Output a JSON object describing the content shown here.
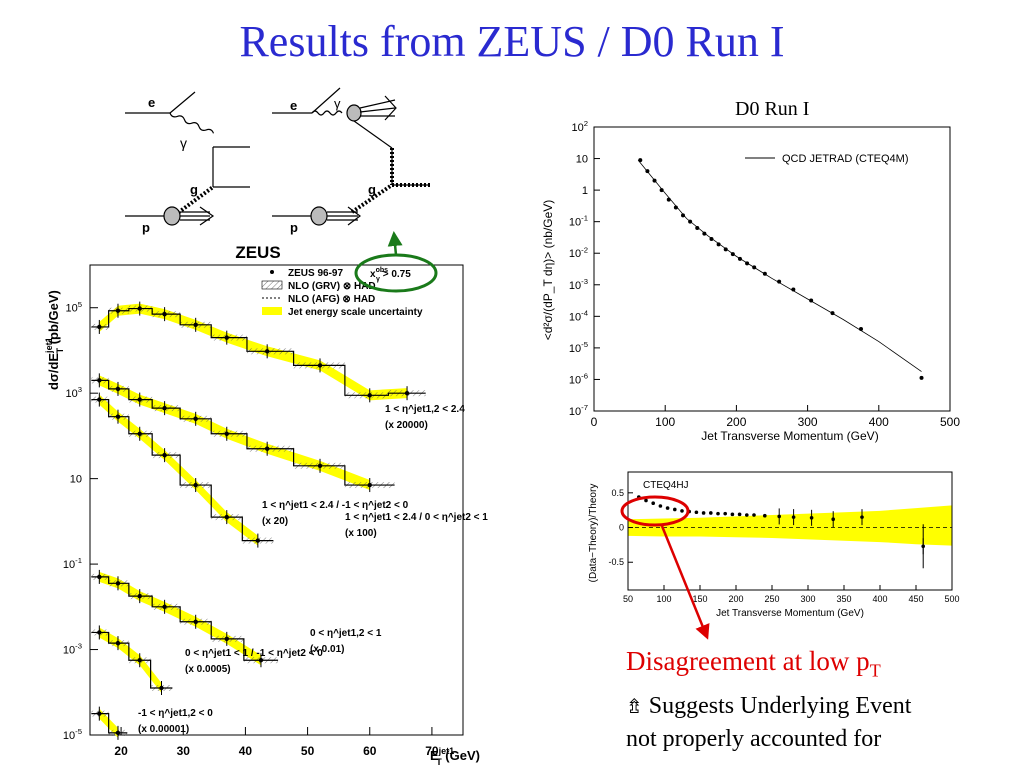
{
  "slide": {
    "title": "Results from ZEUS / D0 Run I",
    "conclusion": "Disagreement at low p",
    "conclusion_sub": "T",
    "bullet_icon": "hollow-arrow-icon",
    "bullet_arrow": "⇯",
    "bullet_line1": "Suggests Underlying Event",
    "bullet_line2": "not properly accounted for",
    "colors": {
      "title": "#2a2ad0",
      "conclusion": "#dd0000",
      "band": "#ffff00",
      "circle_green": "#1a7a1a",
      "circle_red": "#dd0000"
    }
  },
  "feynman": {
    "left": {
      "e": "e",
      "gamma": "γ",
      "g": "g",
      "p": "p"
    },
    "right": {
      "e": "e",
      "gamma": "γ",
      "g": "g",
      "p": "p"
    },
    "annotation": "x",
    "annotation_sup": "obs",
    "annotation_sub": "γ",
    "annotation_rest": " > 0.75"
  },
  "chart_data": [
    {
      "type": "line",
      "title": "ZEUS",
      "xlabel": "E",
      "xlabel_sub": "T",
      "xlabel_sup": "jet1",
      "xlabel_unit": " (GeV)",
      "ylabel": "dσ/dE",
      "ylabel_sub": "T",
      "ylabel_sup": "jet1",
      "ylabel_unit": " (pb/GeV)",
      "xlim": [
        15,
        75
      ],
      "ylim_log10": [
        -5,
        6
      ],
      "yscale": "log",
      "x_ticks": [
        20,
        30,
        40,
        50,
        60,
        70
      ],
      "y_ticks": [
        {
          "base": "10",
          "exp": "5",
          "v": 5
        },
        {
          "base": "10",
          "exp": "3",
          "v": 3
        },
        {
          "base": "10",
          "exp": "",
          "v": 1
        },
        {
          "base": "10",
          "exp": "-1",
          "v": -1
        },
        {
          "base": "10",
          "exp": "-3",
          "v": -3
        },
        {
          "base": "10",
          "exp": "-5",
          "v": -5
        }
      ],
      "legend": [
        {
          "label": "ZEUS 96-97",
          "kind": "dot"
        },
        {
          "label": "NLO (GRV) ⊗ HAD",
          "kind": "hatch"
        },
        {
          "label": "NLO (AFG) ⊗ HAD",
          "kind": "dashed"
        },
        {
          "label": "Jet energy scale uncertainty",
          "kind": "band"
        }
      ],
      "legend_placement": "top-right",
      "series": [
        {
          "label": "1 < η^jet1,2 < 2.4",
          "scale": "(x 20000)",
          "x": [
            16.5,
            19.5,
            23,
            27,
            32,
            37,
            43.5,
            52,
            60,
            66
          ],
          "log10y": [
            4.55,
            4.93,
            4.98,
            4.85,
            4.6,
            4.3,
            3.98,
            3.65,
            2.95,
            3.0
          ]
        },
        {
          "label": "1 < η^jet1 < 2.4 / -1 < η^jet2 < 0",
          "scale": "(x 20)",
          "x": [
            16.5,
            19.5,
            23,
            27,
            32,
            37,
            42
          ],
          "log10y": [
            2.85,
            2.45,
            2.05,
            1.55,
            0.85,
            0.1,
            -0.45
          ]
        },
        {
          "label": "1 < η^jet1 < 2.4 / 0 < η^jet2 < 1",
          "scale": "(x 100)",
          "x": [
            16.5,
            19.5,
            23,
            27,
            32,
            37,
            43.5,
            52,
            60
          ],
          "log10y": [
            3.3,
            3.1,
            2.85,
            2.65,
            2.4,
            2.05,
            1.7,
            1.3,
            0.85
          ]
        },
        {
          "label": "0 < η^jet1,2 < 1",
          "scale": "(x 0.01)",
          "x": [
            16.5,
            19.5,
            23,
            27,
            32,
            37,
            42.5
          ],
          "log10y": [
            -1.3,
            -1.45,
            -1.75,
            -2.0,
            -2.35,
            -2.75,
            -3.25
          ]
        },
        {
          "label": "0 < η^jet1 < 1 / -1 < η^jet2 < 0",
          "scale": "(x 0.0005)",
          "x": [
            16.5,
            19.5,
            23,
            26.5
          ],
          "log10y": [
            -2.6,
            -2.85,
            -3.25,
            -3.9
          ]
        },
        {
          "label": "-1 < η^jet1,2 < 0",
          "scale": "(x 0.00001)",
          "x": [
            16.5,
            19.5
          ],
          "log10y": [
            -4.5,
            -4.95
          ]
        }
      ]
    },
    {
      "type": "scatter",
      "title": "D0 Run I",
      "xlabel": "Jet Transverse Momentum (GeV)",
      "ylabel": "<d²σ/(dP_T dη)> (nb/GeV)",
      "xlim": [
        0,
        500
      ],
      "ylim_log10": [
        -7,
        2
      ],
      "yscale": "log",
      "x_ticks": [
        0,
        100,
        200,
        300,
        400,
        500
      ],
      "y_ticks": [
        {
          "base": "10",
          "exp": "2",
          "v": 2
        },
        {
          "base": "10",
          "exp": "",
          "v": 1
        },
        {
          "base": "1",
          "exp": "",
          "v": 0
        },
        {
          "base": "10",
          "exp": "-1",
          "v": -1
        },
        {
          "base": "10",
          "exp": "-2",
          "v": -2
        },
        {
          "base": "10",
          "exp": "-3",
          "v": -3
        },
        {
          "base": "10",
          "exp": "-4",
          "v": -4
        },
        {
          "base": "10",
          "exp": "-5",
          "v": -5
        },
        {
          "base": "10",
          "exp": "-6",
          "v": -6
        },
        {
          "base": "10",
          "exp": "-7",
          "v": -7
        }
      ],
      "legend": [
        {
          "label": "QCD JETRAD (CTEQ4M)",
          "kind": "line"
        }
      ],
      "legend_placement": "top-right",
      "points": {
        "x": [
          65,
          75,
          85,
          95,
          105,
          115,
          125,
          135,
          145,
          155,
          165,
          175,
          185,
          195,
          205,
          215,
          225,
          240,
          260,
          280,
          305,
          335,
          375,
          460
        ],
        "log10y": [
          0.95,
          0.6,
          0.3,
          0.0,
          -0.3,
          -0.55,
          -0.8,
          -1.0,
          -1.2,
          -1.38,
          -1.55,
          -1.72,
          -1.88,
          -2.03,
          -2.18,
          -2.32,
          -2.45,
          -2.65,
          -2.9,
          -3.15,
          -3.5,
          -3.9,
          -4.4,
          -5.95
        ]
      },
      "curve": {
        "x": [
          62,
          80,
          100,
          130,
          160,
          200,
          250,
          300,
          350,
          400,
          460
        ],
        "log10y": [
          0.95,
          0.45,
          -0.1,
          -0.9,
          -1.45,
          -2.1,
          -2.8,
          -3.45,
          -4.1,
          -4.8,
          -5.75
        ]
      }
    },
    {
      "type": "scatter",
      "xlabel": "Jet Transverse Momentum (GeV)",
      "ylabel": "(Data−Theory)/Theory",
      "annotation": "CTEQ4HJ",
      "xlim": [
        50,
        500
      ],
      "ylim": [
        -0.9,
        0.8
      ],
      "x_ticks": [
        50,
        100,
        150,
        200,
        250,
        300,
        350,
        400,
        450,
        500
      ],
      "y_ticks": [
        {
          "label": "0.5",
          "v": 0.5
        },
        {
          "label": "0",
          "v": 0
        },
        {
          "label": "-0.5",
          "v": -0.5
        }
      ],
      "points": {
        "x": [
          65,
          75,
          85,
          95,
          105,
          115,
          125,
          135,
          145,
          155,
          165,
          175,
          185,
          195,
          205,
          215,
          225,
          240,
          260,
          280,
          305,
          335,
          375,
          460
        ],
        "y": [
          0.44,
          0.39,
          0.35,
          0.31,
          0.28,
          0.26,
          0.24,
          0.23,
          0.22,
          0.21,
          0.21,
          0.2,
          0.2,
          0.19,
          0.19,
          0.18,
          0.18,
          0.17,
          0.16,
          0.15,
          0.14,
          0.12,
          0.15,
          -0.27
        ]
      },
      "band": {
        "x": [
          50,
          100,
          150,
          200,
          250,
          300,
          350,
          400,
          450,
          500
        ],
        "upper": [
          0.12,
          0.13,
          0.14,
          0.16,
          0.18,
          0.2,
          0.22,
          0.24,
          0.28,
          0.32
        ],
        "lower": [
          -0.12,
          -0.13,
          -0.13,
          -0.14,
          -0.15,
          -0.17,
          -0.19,
          -0.21,
          -0.24,
          -0.26
        ]
      }
    }
  ]
}
